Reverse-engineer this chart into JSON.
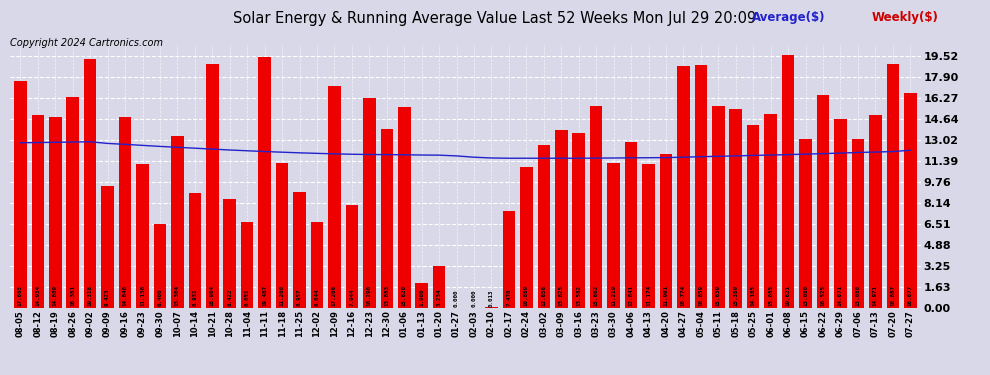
{
  "title": "Solar Energy & Running Average Value Last 52 Weeks Mon Jul 29 20:09",
  "copyright": "Copyright 2024 Cartronics.com",
  "bar_color": "#ee0000",
  "avg_line_color": "#2222cc",
  "weekly_label_color": "#cc0000",
  "avg_label_color": "#2222cc",
  "background_color": "#d8d8e8",
  "plot_bg_color": "#d8d8e8",
  "grid_color": "#ffffff",
  "categories": [
    "08-05",
    "08-12",
    "08-19",
    "08-26",
    "09-02",
    "09-09",
    "09-16",
    "09-23",
    "09-30",
    "10-07",
    "10-14",
    "10-21",
    "10-28",
    "11-04",
    "11-11",
    "11-18",
    "11-25",
    "12-02",
    "12-09",
    "12-16",
    "12-23",
    "12-30",
    "01-06",
    "01-13",
    "01-20",
    "01-27",
    "02-03",
    "02-10",
    "02-17",
    "02-24",
    "03-02",
    "03-09",
    "03-16",
    "03-23",
    "03-30",
    "04-06",
    "04-13",
    "04-20",
    "04-27",
    "05-04",
    "05-11",
    "05-18",
    "05-25",
    "06-01",
    "06-08",
    "06-15",
    "06-22",
    "06-29",
    "07-06",
    "07-13",
    "07-20",
    "07-27"
  ],
  "weekly_values": [
    17.605,
    14.934,
    14.809,
    16.381,
    19.318,
    9.423,
    14.84,
    11.136,
    6.46,
    13.364,
    8.931,
    18.904,
    8.422,
    6.651,
    19.487,
    11.2,
    8.957,
    6.644,
    17.206,
    7.944,
    16.29,
    13.863,
    15.62,
    1.9,
    3.234,
    0.0,
    0.0,
    0.013,
    7.47,
    10.889,
    12.656,
    13.825,
    13.582,
    15.662,
    11.219,
    12.841,
    11.174,
    11.901,
    18.774,
    18.859,
    15.639,
    15.389,
    14.165,
    15.065,
    19.621,
    13.08,
    16.525,
    14.671,
    13.08,
    14.971,
    18.887,
    16.677
  ],
  "avg_values": [
    12.8,
    12.82,
    12.84,
    12.86,
    12.88,
    12.75,
    12.68,
    12.6,
    12.52,
    12.45,
    12.38,
    12.31,
    12.24,
    12.18,
    12.12,
    12.07,
    12.02,
    11.98,
    11.94,
    11.91,
    11.89,
    11.88,
    11.87,
    11.85,
    11.84,
    11.78,
    11.68,
    11.62,
    11.6,
    11.6,
    11.6,
    11.6,
    11.6,
    11.61,
    11.62,
    11.63,
    11.64,
    11.65,
    11.68,
    11.72,
    11.75,
    11.78,
    11.82,
    11.85,
    11.88,
    11.92,
    11.96,
    12.0,
    12.05,
    12.08,
    12.12,
    12.22
  ],
  "yticks": [
    0.0,
    1.63,
    3.25,
    4.88,
    6.51,
    8.14,
    9.76,
    11.39,
    13.02,
    14.64,
    16.27,
    17.9,
    19.52
  ],
  "ylim": [
    0,
    20.4
  ],
  "figsize": [
    9.9,
    3.75
  ],
  "dpi": 100
}
